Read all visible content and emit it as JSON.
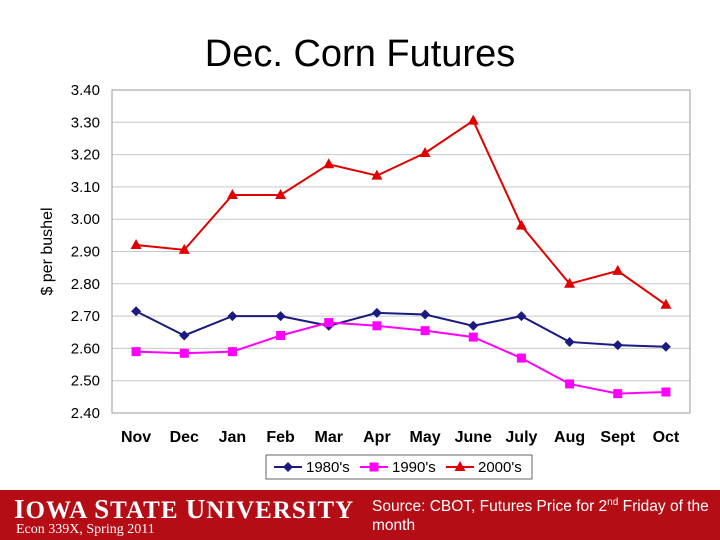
{
  "chart_data": {
    "type": "line",
    "title": "Dec. Corn Futures",
    "ylabel": "$ per bushel",
    "xlabel": "",
    "ylim": [
      2.4,
      3.4
    ],
    "y_ticks": [
      "2.40",
      "2.50",
      "2.60",
      "2.70",
      "2.80",
      "2.90",
      "3.00",
      "3.10",
      "3.20",
      "3.30",
      "3.40"
    ],
    "grid": "horizontal",
    "legend_position": "bottom",
    "categories": [
      "Nov",
      "Dec",
      "Jan",
      "Feb",
      "Mar",
      "Apr",
      "May",
      "June",
      "July",
      "Aug",
      "Sept",
      "Oct"
    ],
    "series": [
      {
        "name": "1980's",
        "color": "#1a1a80",
        "marker": "diamond",
        "values": [
          2.715,
          2.64,
          2.7,
          2.7,
          2.67,
          2.71,
          2.705,
          2.67,
          2.7,
          2.62,
          2.61,
          2.605
        ]
      },
      {
        "name": "1990's",
        "color": "#ff00ff",
        "marker": "square",
        "values": [
          2.59,
          2.585,
          2.59,
          2.64,
          2.68,
          2.67,
          2.655,
          2.635,
          2.57,
          2.49,
          2.46,
          2.465
        ]
      },
      {
        "name": "2000's",
        "color": "#e00000",
        "marker": "triangle",
        "values": [
          2.92,
          2.905,
          3.075,
          3.075,
          3.17,
          3.135,
          3.205,
          3.305,
          2.98,
          2.8,
          2.84,
          2.735
        ]
      }
    ]
  },
  "footer": {
    "logo_text": "Iowa State University",
    "course": "Econ 339X, Spring 2011",
    "source_prefix": "Source: CBOT, Futures Price for 2",
    "source_sup": "nd",
    "source_suffix": " Friday of the month"
  }
}
